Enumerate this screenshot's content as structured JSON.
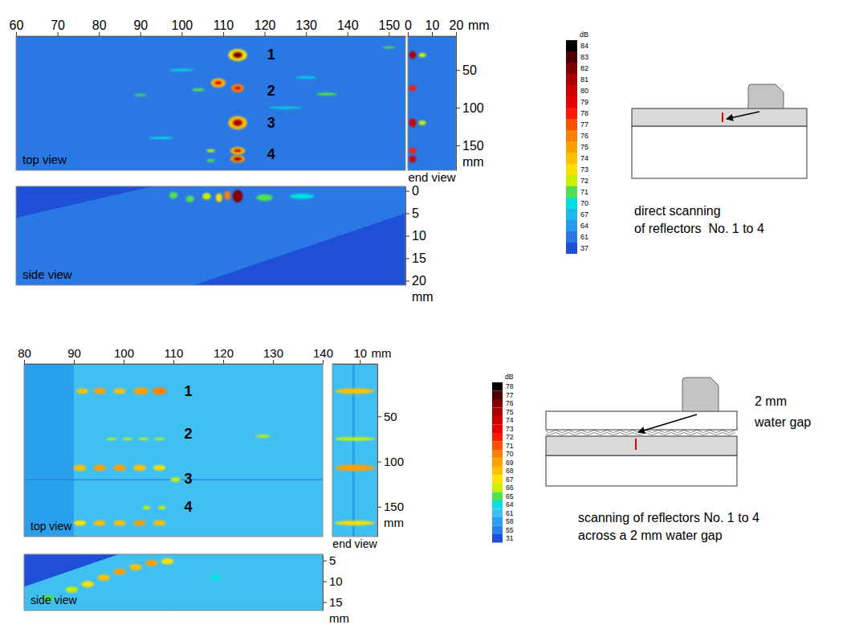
{
  "chart_data": [
    {
      "type": "heatmap",
      "panels": [
        {
          "title": "top view",
          "xlim": [
            60,
            154
          ],
          "ylim": [
            5,
            183
          ],
          "xticks": [
            60,
            70,
            80,
            90,
            100,
            110,
            120,
            130,
            140,
            150
          ],
          "background": 61,
          "spots": [
            {
              "x": 113.5,
              "y": 30,
              "w": 4.5,
              "h": 16,
              "value": 73
            },
            {
              "x": 113.5,
              "y": 30,
              "w": 2.5,
              "h": 9,
              "value": 82
            },
            {
              "x": 108.8,
              "y": 67,
              "w": 3.5,
              "h": 12,
              "value": 74
            },
            {
              "x": 108.8,
              "y": 67,
              "w": 2,
              "h": 6,
              "value": 79
            },
            {
              "x": 113.5,
              "y": 74,
              "w": 3,
              "h": 11,
              "value": 76
            },
            {
              "x": 113.5,
              "y": 74,
              "w": 1.6,
              "h": 5,
              "value": 80
            },
            {
              "x": 104,
              "y": 76,
              "w": 3,
              "h": 4,
              "value": 71
            },
            {
              "x": 135,
              "y": 82,
              "w": 5,
              "h": 4,
              "value": 71
            },
            {
              "x": 90,
              "y": 83,
              "w": 3,
              "h": 3,
              "value": 71
            },
            {
              "x": 113.5,
              "y": 120,
              "w": 4.5,
              "h": 18,
              "value": 74
            },
            {
              "x": 113.5,
              "y": 120,
              "w": 2.5,
              "h": 10,
              "value": 81
            },
            {
              "x": 113.5,
              "y": 157,
              "w": 3.5,
              "h": 10,
              "value": 74
            },
            {
              "x": 113.5,
              "y": 157,
              "w": 2,
              "h": 5,
              "value": 80
            },
            {
              "x": 113.5,
              "y": 168,
              "w": 3.5,
              "h": 10,
              "value": 75
            },
            {
              "x": 113.5,
              "y": 168,
              "w": 2.2,
              "h": 6,
              "value": 81
            },
            {
              "x": 107,
              "y": 157,
              "w": 2,
              "h": 4,
              "value": 72
            },
            {
              "x": 107,
              "y": 170,
              "w": 2,
              "h": 4,
              "value": 71
            },
            {
              "x": 100,
              "y": 50,
              "w": 6,
              "h": 3,
              "value": 70
            },
            {
              "x": 125,
              "y": 100,
              "w": 8,
              "h": 3,
              "value": 70
            },
            {
              "x": 95,
              "y": 140,
              "w": 6,
              "h": 3,
              "value": 70
            },
            {
              "x": 130,
              "y": 60,
              "w": 5,
              "h": 3,
              "value": 70
            },
            {
              "x": 150,
              "y": 20,
              "w": 3,
              "h": 3,
              "value": 71
            }
          ],
          "annotations": [
            {
              "text": "1",
              "x": 121.6,
              "y": 30
            },
            {
              "text": "2",
              "x": 121.6,
              "y": 77
            },
            {
              "text": "3",
              "x": 121.6,
              "y": 120
            },
            {
              "text": "4",
              "x": 121.6,
              "y": 162
            }
          ]
        },
        {
          "title": "end view",
          "xlim": [
            0,
            20
          ],
          "ylim": [
            5,
            183
          ],
          "xticks": [
            0,
            10,
            20
          ],
          "x_unit": "mm",
          "yticks": [
            50,
            100,
            150
          ],
          "y_unit": "mm",
          "background": 61,
          "spots": [
            {
              "x": 6,
              "y": 30,
              "w": 3,
              "h": 6,
              "value": 72
            },
            {
              "x": 6,
              "y": 120,
              "w": 3,
              "h": 6,
              "value": 72
            },
            {
              "x": 2,
              "y": 30,
              "w": 3,
              "h": 10,
              "value": 81
            },
            {
              "x": 2,
              "y": 74,
              "w": 3,
              "h": 8,
              "value": 78
            },
            {
              "x": 2,
              "y": 120,
              "w": 3,
              "h": 12,
              "value": 80
            },
            {
              "x": 2,
              "y": 157,
              "w": 3,
              "h": 8,
              "value": 78
            },
            {
              "x": 2,
              "y": 168,
              "w": 3,
              "h": 9,
              "value": 80
            }
          ]
        },
        {
          "title": "side view",
          "xlim": [
            60,
            154
          ],
          "ylim": [
            -1,
            21
          ],
          "yticks": [
            0,
            5,
            10,
            15,
            20
          ],
          "y_unit": "mm",
          "background": 61,
          "regions": [
            {
              "points": [
                [
                  60,
                  -1
                ],
                [
                  93,
                  -1
                ],
                [
                  60,
                  6
                ]
              ],
              "value": 37
            },
            {
              "points": [
                [
                  103,
                  21
                ],
                [
                  154,
                  21
                ],
                [
                  154,
                  5
                ]
              ],
              "value": 37
            }
          ],
          "spots": [
            {
              "x": 129,
              "y": 1.2,
              "w": 6,
              "h": 1.2,
              "value": 70
            },
            {
              "x": 120,
              "y": 1.5,
              "w": 4,
              "h": 1.5,
              "value": 71
            },
            {
              "x": 98,
              "y": 1.0,
              "w": 2,
              "h": 1.5,
              "value": 71
            },
            {
              "x": 102,
              "y": 1.8,
              "w": 2,
              "h": 1.5,
              "value": 71
            },
            {
              "x": 106,
              "y": 1.2,
              "w": 2,
              "h": 1.5,
              "value": 72
            },
            {
              "x": 109,
              "y": 1.5,
              "w": 1.5,
              "h": 2,
              "value": 73
            },
            {
              "x": 111,
              "y": 1.0,
              "w": 1.5,
              "h": 2,
              "value": 76
            },
            {
              "x": 113.5,
              "y": 1.2,
              "w": 2.5,
              "h": 2.8,
              "value": 82
            }
          ]
        }
      ],
      "colorbar": {
        "label": "dB",
        "ticks": [
          84,
          83,
          82,
          81,
          80,
          79,
          78,
          77,
          76,
          75,
          74,
          73,
          72,
          71,
          70,
          67,
          64,
          61,
          37
        ],
        "colors": [
          "#000000",
          "#4d0000",
          "#800000",
          "#a80000",
          "#cc0000",
          "#e60000",
          "#ff1a00",
          "#ff5000",
          "#ff8000",
          "#ffa000",
          "#ffc000",
          "#ffe000",
          "#c8f000",
          "#50e050",
          "#00e0e0",
          "#20b8f0",
          "#2a98ec",
          "#2a78e4",
          "#1f4fd6"
        ]
      },
      "schematic": {
        "caption": [
          "direct scanning",
          "of reflectors  No. 1 to 4"
        ]
      }
    },
    {
      "type": "heatmap",
      "panels": [
        {
          "title": "top view",
          "xlim": [
            80,
            140
          ],
          "ylim": [
            -8,
            183
          ],
          "xticks": [
            80,
            90,
            100,
            110,
            120,
            130,
            140
          ],
          "background": 61,
          "regions": [
            {
              "points": [
                [
                  80,
                  -8
                ],
                [
                  90,
                  -8
                ],
                [
                  90,
                  183
                ],
                [
                  80,
                  183
                ]
              ],
              "value": 58
            },
            {
              "points": [
                [
                  80,
                  119.5
                ],
                [
                  140,
                  119.5
                ],
                [
                  140,
                  120.5
                ],
                [
                  80,
                  120.5
                ]
              ],
              "value": 55
            }
          ],
          "spots": [
            {
              "x": 91.7,
              "y": 22,
              "w": 2.5,
              "h": 6,
              "value": 68
            },
            {
              "x": 95.2,
              "y": 22,
              "w": 2.5,
              "h": 7,
              "value": 69
            },
            {
              "x": 99.2,
              "y": 22,
              "w": 2.5,
              "h": 6,
              "value": 68
            },
            {
              "x": 103.5,
              "y": 22,
              "w": 3,
              "h": 8,
              "value": 69
            },
            {
              "x": 107.2,
              "y": 22,
              "w": 3,
              "h": 8,
              "value": 70
            },
            {
              "x": 97.6,
              "y": 75,
              "w": 2,
              "h": 3,
              "value": 66
            },
            {
              "x": 100.8,
              "y": 75,
              "w": 2,
              "h": 3,
              "value": 66
            },
            {
              "x": 104,
              "y": 75,
              "w": 2,
              "h": 3,
              "value": 66
            },
            {
              "x": 107.2,
              "y": 75,
              "w": 2,
              "h": 3,
              "value": 66
            },
            {
              "x": 128,
              "y": 72,
              "w": 3,
              "h": 3,
              "value": 66
            },
            {
              "x": 91.2,
              "y": 107,
              "w": 2.5,
              "h": 7,
              "value": 68
            },
            {
              "x": 95.2,
              "y": 107,
              "w": 2.5,
              "h": 7,
              "value": 69
            },
            {
              "x": 99.2,
              "y": 107,
              "w": 2.5,
              "h": 7,
              "value": 69
            },
            {
              "x": 103.2,
              "y": 107,
              "w": 2.5,
              "h": 7,
              "value": 68
            },
            {
              "x": 107.2,
              "y": 107,
              "w": 2.5,
              "h": 6,
              "value": 67
            },
            {
              "x": 110.4,
              "y": 120,
              "w": 2,
              "h": 5,
              "value": 66
            },
            {
              "x": 91.2,
              "y": 168,
              "w": 2.5,
              "h": 6,
              "value": 67
            },
            {
              "x": 95.2,
              "y": 168,
              "w": 2.5,
              "h": 6,
              "value": 68
            },
            {
              "x": 99.2,
              "y": 168,
              "w": 2.5,
              "h": 6,
              "value": 68
            },
            {
              "x": 103.2,
              "y": 168,
              "w": 2.5,
              "h": 6,
              "value": 69
            },
            {
              "x": 107.2,
              "y": 168,
              "w": 2.5,
              "h": 6,
              "value": 68
            },
            {
              "x": 104.6,
              "y": 151,
              "w": 1.5,
              "h": 4,
              "value": 66
            },
            {
              "x": 107.7,
              "y": 151,
              "w": 1.5,
              "h": 4,
              "value": 66
            }
          ],
          "annotations": [
            {
              "text": "1",
              "x": 113,
              "y": 22
            },
            {
              "text": "2",
              "x": 113,
              "y": 69
            },
            {
              "text": "3",
              "x": 113,
              "y": 119
            },
            {
              "text": "4",
              "x": 113,
              "y": 150
            }
          ]
        },
        {
          "title": "end view",
          "xlim": [
            4.5,
            13.5
          ],
          "ylim": [
            -8,
            183
          ],
          "xticks": [
            10
          ],
          "x_unit": "mm",
          "yticks": [
            50,
            100,
            150
          ],
          "y_unit": "mm",
          "background": 61,
          "regions": [
            {
              "points": [
                [
                  8.5,
                  -8
                ],
                [
                  9,
                  -8
                ],
                [
                  9,
                  183
                ],
                [
                  8.5,
                  183
                ]
              ],
              "value": 58
            }
          ],
          "spots": [
            {
              "x": 9,
              "y": 22,
              "w": 8,
              "h": 6,
              "value": 68
            },
            {
              "x": 9,
              "y": 75,
              "w": 8,
              "h": 4,
              "value": 66
            },
            {
              "x": 9,
              "y": 107,
              "w": 8,
              "h": 7,
              "value": 69
            },
            {
              "x": 9,
              "y": 168,
              "w": 8,
              "h": 5,
              "value": 67
            }
          ]
        },
        {
          "title": "side view",
          "xlim": [
            80,
            140
          ],
          "ylim": [
            3.5,
            17
          ],
          "yticks": [
            5,
            10,
            15
          ],
          "y_unit": "mm",
          "background": 61,
          "regions": [
            {
              "points": [
                [
                  80,
                  3.5
                ],
                [
                  99,
                  3.5
                ],
                [
                  80,
                  11.3
                ]
              ],
              "value": 31
            }
          ],
          "spots": [
            {
              "x": 84.8,
              "y": 14,
              "w": 2.5,
              "h": 1.5,
              "value": 65
            },
            {
              "x": 89.6,
              "y": 12,
              "w": 2.5,
              "h": 1.5,
              "value": 66
            },
            {
              "x": 92.8,
              "y": 10.7,
              "w": 2.5,
              "h": 1.5,
              "value": 67
            },
            {
              "x": 96,
              "y": 9.1,
              "w": 2.5,
              "h": 1.5,
              "value": 68
            },
            {
              "x": 99.2,
              "y": 7.7,
              "w": 2.5,
              "h": 1.5,
              "value": 69
            },
            {
              "x": 102.4,
              "y": 6.6,
              "w": 2.5,
              "h": 1.5,
              "value": 68
            },
            {
              "x": 105.6,
              "y": 5.6,
              "w": 2.5,
              "h": 1.5,
              "value": 69
            },
            {
              "x": 108.8,
              "y": 5.2,
              "w": 2.5,
              "h": 1.5,
              "value": 67
            },
            {
              "x": 118.4,
              "y": 9.1,
              "w": 2,
              "h": 1.5,
              "value": 64
            },
            {
              "x": 110.4,
              "y": 15.4,
              "w": 3,
              "h": 1,
              "value": 61
            }
          ]
        }
      ],
      "colorbar": {
        "label": "dB",
        "ticks": [
          78,
          77,
          76,
          75,
          74,
          73,
          72,
          71,
          70,
          69,
          68,
          67,
          66,
          65,
          64,
          61,
          58,
          55,
          31
        ],
        "colors": [
          "#000000",
          "#4d0000",
          "#800000",
          "#a80000",
          "#cc0000",
          "#e60000",
          "#ff1a00",
          "#ff5000",
          "#ff8000",
          "#ffa000",
          "#ffc000",
          "#ffe000",
          "#c8f000",
          "#50e050",
          "#00e0e0",
          "#40c0f0",
          "#2aa0ec",
          "#2a80e4",
          "#1f4fd6"
        ]
      },
      "schematic": {
        "label": [
          "2 mm",
          "water gap"
        ],
        "caption": [
          "scanning of reflectors No. 1 to 4",
          "across a 2 mm water gap"
        ]
      }
    }
  ]
}
